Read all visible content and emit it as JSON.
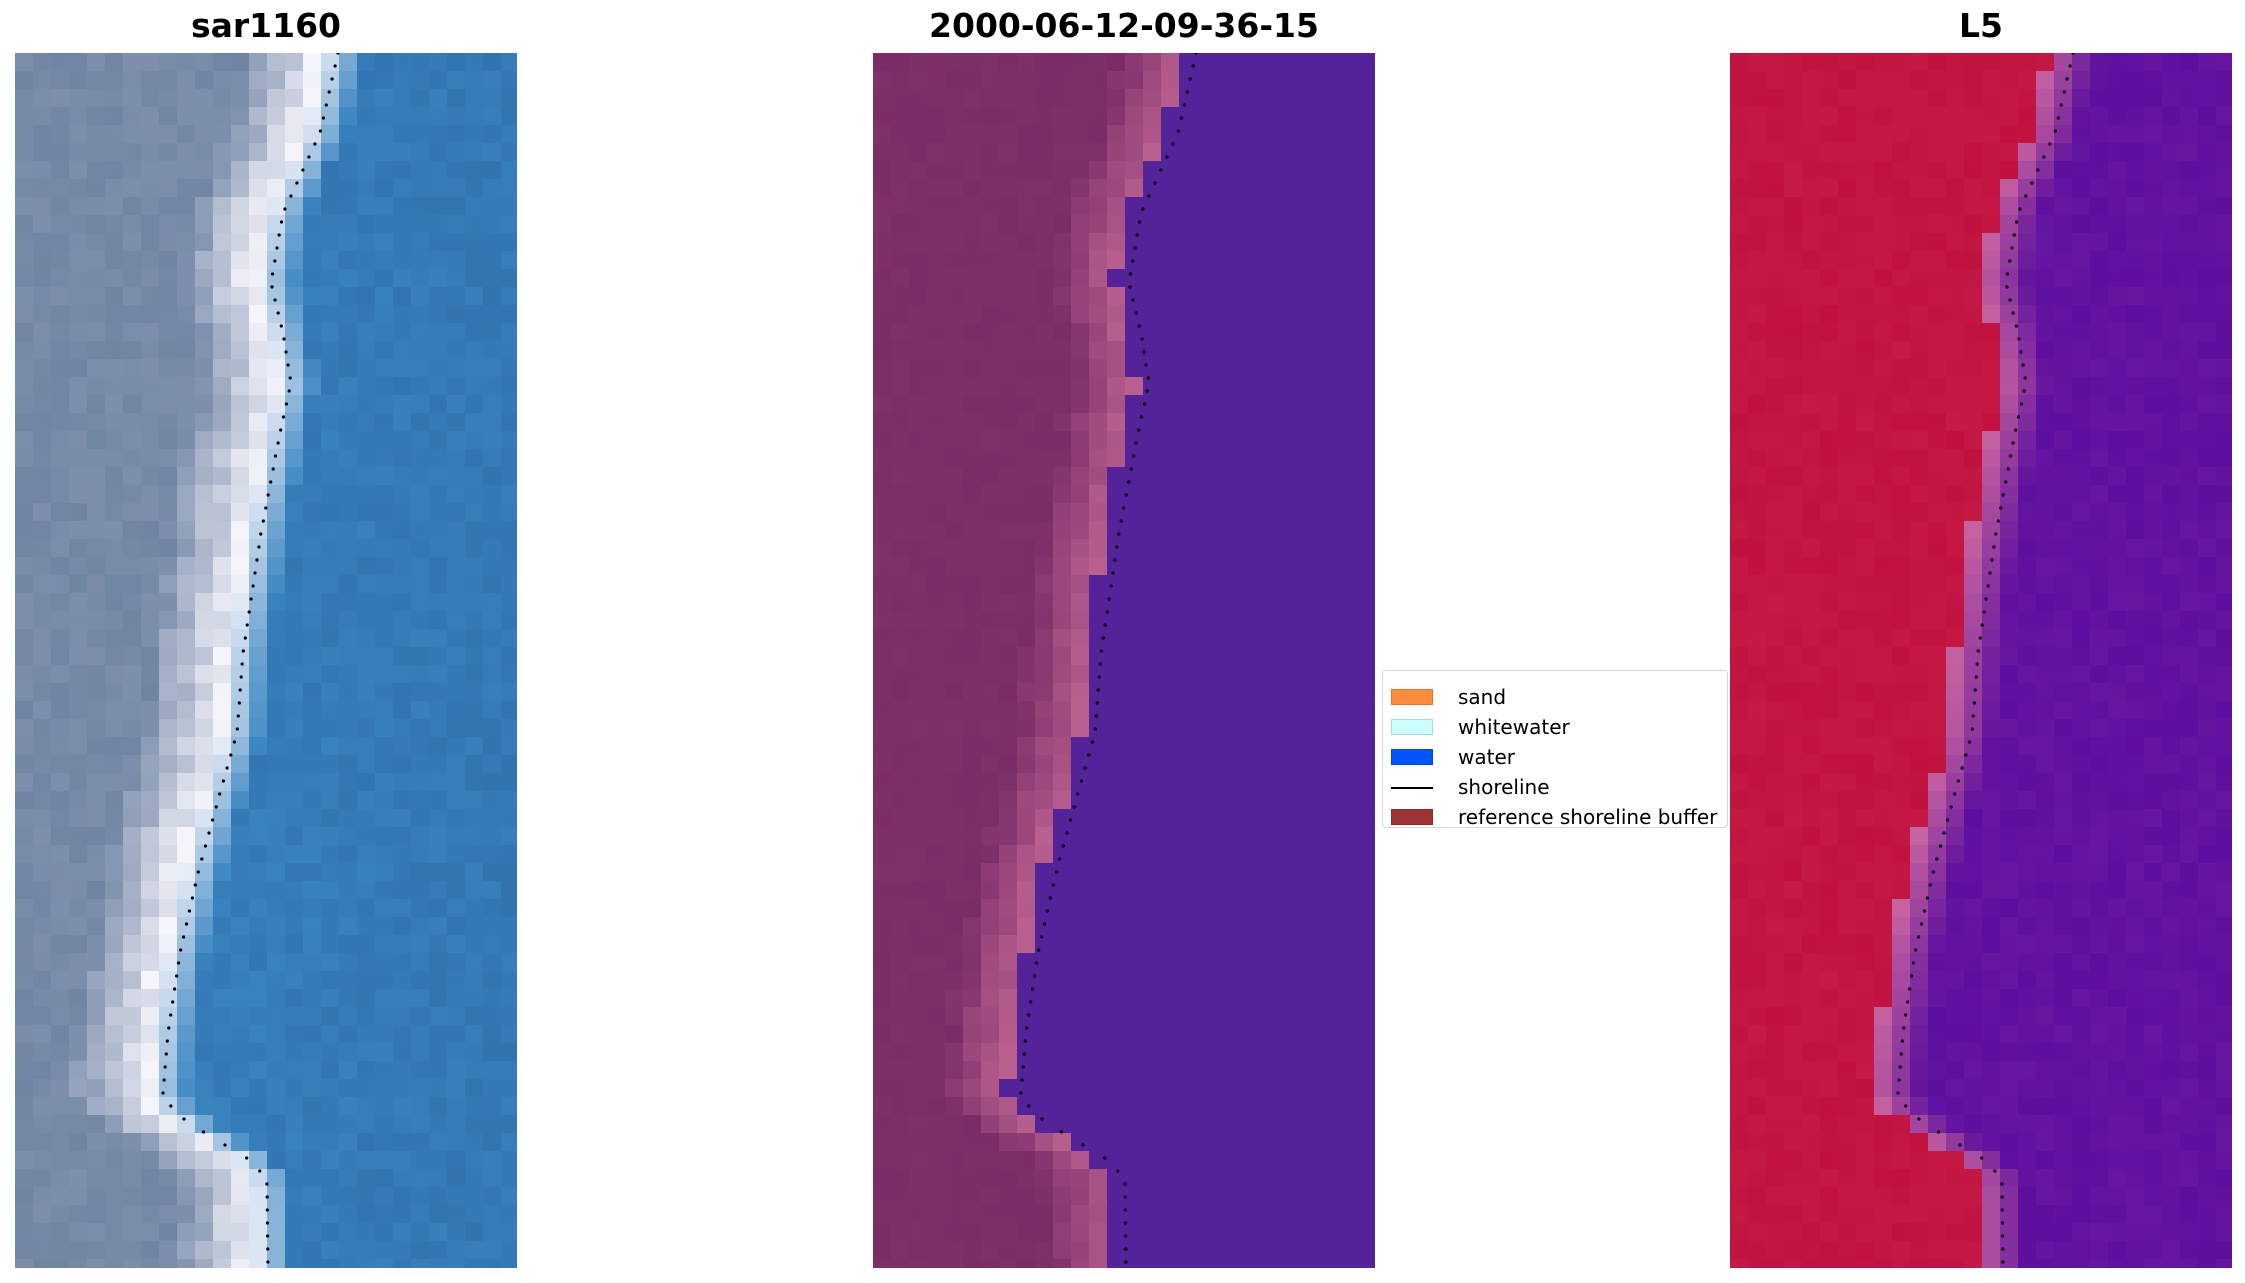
{
  "panels": [
    {
      "title": "sar1160",
      "style": "rgb"
    },
    {
      "title": "2000-06-12-09-36-15",
      "style": "classified"
    },
    {
      "title": "L5",
      "style": "index"
    }
  ],
  "legend": {
    "items": [
      {
        "label": "sand",
        "color": "#ff8c3c",
        "kind": "patch"
      },
      {
        "label": "whitewater",
        "color": "#ccffff",
        "kind": "patch"
      },
      {
        "label": "water",
        "color": "#0055ff",
        "kind": "patch"
      },
      {
        "label": "shoreline",
        "color": "#000000",
        "kind": "line"
      },
      {
        "label": "reference shoreline buffer",
        "color": "#9e3535",
        "kind": "patch"
      }
    ]
  },
  "colors": {
    "classified_water": "#54239a",
    "classified_land": "#7a2c66",
    "classified_edge": "#b9608f",
    "index_land": "#c1123f",
    "index_water": "#5c0e9e",
    "rgb_water": "#3a86c2",
    "rgb_land": "#7d8fad",
    "rgb_surf": "#f4f4fa",
    "shoreline": "#000000"
  }
}
